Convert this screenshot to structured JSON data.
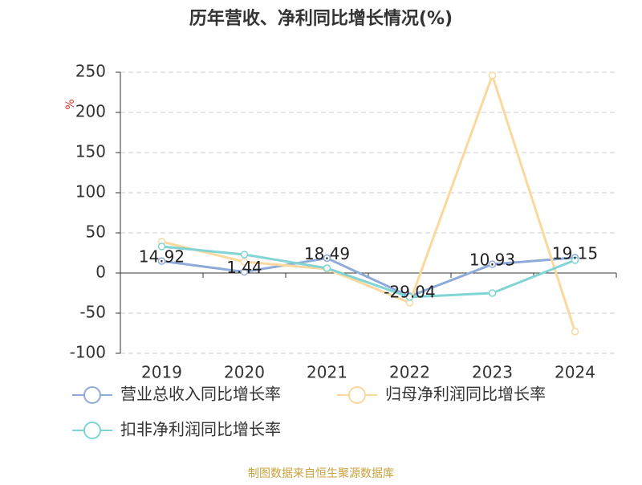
{
  "chart_data": {
    "type": "line",
    "title": "历年营收、净利同比增长情况(%)",
    "y_label": "%",
    "source": "制图数据来自恒生聚源数据库",
    "categories": [
      "2019",
      "2020",
      "2021",
      "2022",
      "2023",
      "2024"
    ],
    "series": [
      {
        "name": "营业总收入同比增长率",
        "color": "#8eaad9",
        "values": [
          14.92,
          1.44,
          18.49,
          -29.04,
          10.93,
          19.15
        ],
        "show_labels": true
      },
      {
        "name": "归母净利润同比增长率",
        "color": "#fbd89e",
        "values": [
          39,
          14,
          5,
          -37,
          246,
          -73
        ]
      },
      {
        "name": "扣非净利润同比增长率",
        "color": "#80d4d4",
        "values": [
          33,
          23,
          6,
          -30,
          -25,
          16
        ]
      }
    ],
    "ylim": [
      -100,
      250
    ],
    "yticks": [
      -100,
      -50,
      0,
      50,
      100,
      150,
      200,
      250
    ],
    "grid": true
  }
}
